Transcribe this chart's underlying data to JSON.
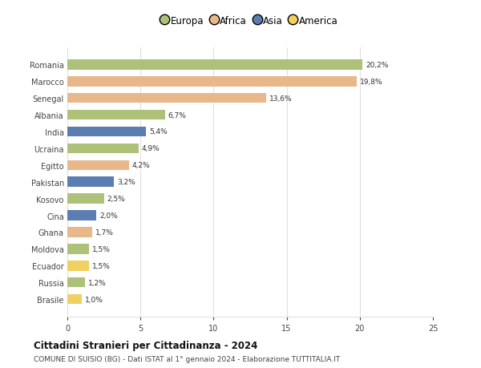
{
  "countries": [
    "Brasile",
    "Russia",
    "Ecuador",
    "Moldova",
    "Ghana",
    "Cina",
    "Kosovo",
    "Pakistan",
    "Egitto",
    "Ucraina",
    "India",
    "Albania",
    "Senegal",
    "Marocco",
    "Romania"
  ],
  "values": [
    1.0,
    1.2,
    1.5,
    1.5,
    1.7,
    2.0,
    2.5,
    3.2,
    4.2,
    4.9,
    5.4,
    6.7,
    13.6,
    19.8,
    20.2
  ],
  "labels": [
    "1,0%",
    "1,2%",
    "1,5%",
    "1,5%",
    "1,7%",
    "2,0%",
    "2,5%",
    "3,2%",
    "4,2%",
    "4,9%",
    "5,4%",
    "6,7%",
    "13,6%",
    "19,8%",
    "20,2%"
  ],
  "continents": [
    "America",
    "Europa",
    "America",
    "Europa",
    "Africa",
    "Asia",
    "Europa",
    "Asia",
    "Africa",
    "Europa",
    "Asia",
    "Europa",
    "Africa",
    "Africa",
    "Europa"
  ],
  "continent_colors": {
    "Europa": "#adc178",
    "Africa": "#e8b88a",
    "Asia": "#5b7db1",
    "America": "#f0d060"
  },
  "legend_order": [
    "Europa",
    "Africa",
    "Asia",
    "America"
  ],
  "legend_colors": [
    "#adc178",
    "#e8b88a",
    "#5b7db1",
    "#f0d060"
  ],
  "title": "Cittadini Stranieri per Cittadinanza - 2024",
  "subtitle": "COMUNE DI SUISIO (BG) - Dati ISTAT al 1° gennaio 2024 - Elaborazione TUTTITALIA.IT",
  "xlim": [
    0,
    25
  ],
  "xticks": [
    0,
    5,
    10,
    15,
    20,
    25
  ],
  "background_color": "#ffffff",
  "grid_color": "#e0e0e0",
  "bar_height": 0.6
}
